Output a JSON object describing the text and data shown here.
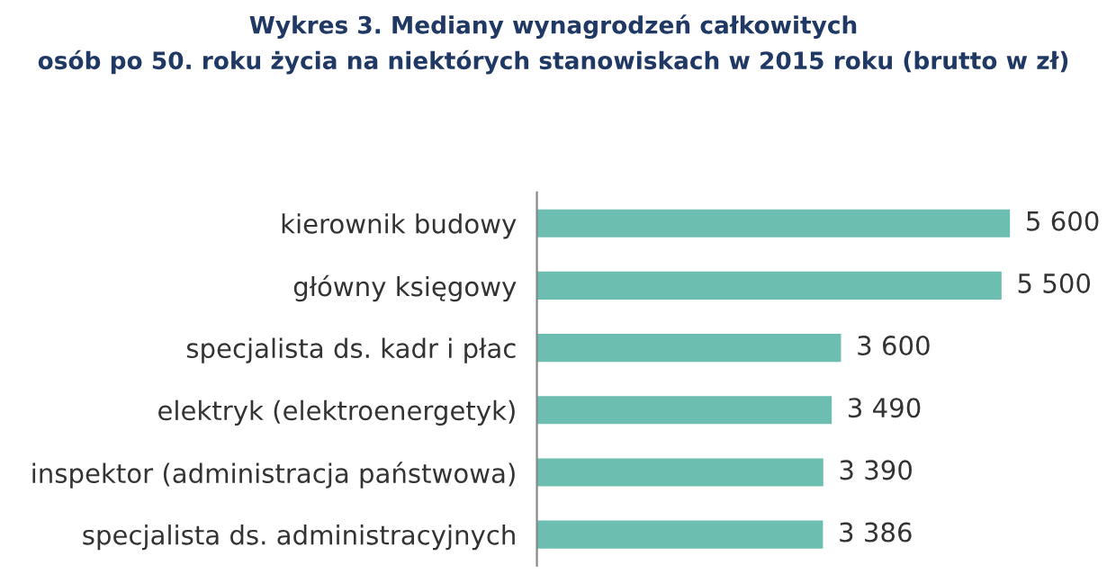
{
  "chart_data": {
    "type": "bar",
    "orientation": "horizontal",
    "title": "Wykres 3. Mediany wynagrodzeń całkowitych\nosób po 50. roku życia na niektórych stanowiskach w 2015 roku (brutto w zł)",
    "categories": [
      "kierownik budowy",
      "główny księgowy",
      "specjalista ds. kadr i płac",
      "elektryk (elektroenergetyk)",
      "inspektor (administracja państwowa)",
      "specjalista ds. administracyjnych"
    ],
    "values": [
      5600,
      5500,
      3600,
      3490,
      3390,
      3386
    ],
    "value_labels": [
      "5 600",
      "5 500",
      "3 600",
      "3 490",
      "3 390",
      "3 386"
    ],
    "color": "#6cbfb0",
    "grid": false,
    "legend": false,
    "tick_labels": "y"
  }
}
